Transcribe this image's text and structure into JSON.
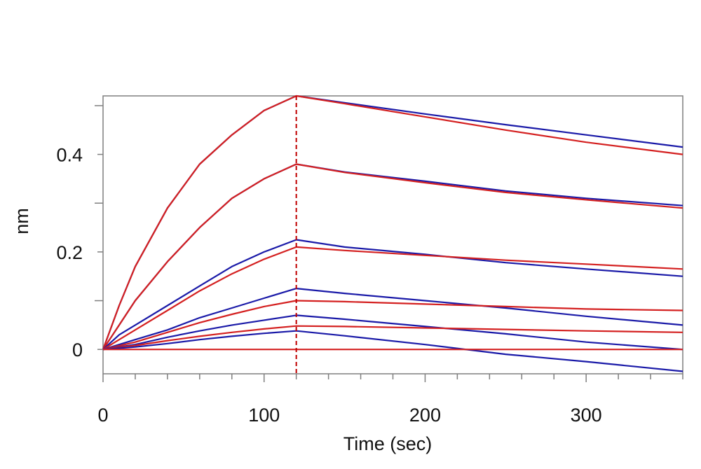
{
  "chart_data": {
    "type": "line",
    "title": "",
    "xlabel": "Time (sec)",
    "ylabel": "nm",
    "xlim": [
      0,
      360
    ],
    "ylim": [
      -0.05,
      0.52
    ],
    "x_major_ticks": [
      0,
      100,
      200,
      300
    ],
    "x_tick_labels": [
      "0",
      "100",
      "200",
      "300"
    ],
    "x_minor_tick_step": 20,
    "y_major_ticks": [
      0,
      0.2,
      0.4
    ],
    "y_tick_labels": [
      "0",
      "0.2",
      "0.4"
    ],
    "y_minor_ticks": [
      0.1,
      0.3,
      0.5
    ],
    "grid": false,
    "legend": "none",
    "marker_line": {
      "x": 120,
      "color": "#c00000",
      "style": "dashed"
    },
    "colors": {
      "data": "#1a1aa8",
      "fit": "#d42020",
      "axis": "#7f7f7f"
    },
    "series": [
      {
        "role": "data",
        "x": [
          0,
          10,
          20,
          40,
          60,
          80,
          100,
          120,
          150,
          200,
          250,
          300,
          360
        ],
        "values": [
          0.0,
          0.09,
          0.17,
          0.29,
          0.38,
          0.44,
          0.49,
          0.52,
          0.506,
          0.483,
          0.461,
          0.44,
          0.415
        ]
      },
      {
        "role": "fit",
        "x": [
          0,
          10,
          20,
          40,
          60,
          80,
          100,
          120,
          150,
          200,
          250,
          300,
          360
        ],
        "values": [
          0.0,
          0.09,
          0.17,
          0.29,
          0.38,
          0.44,
          0.49,
          0.52,
          0.504,
          0.477,
          0.45,
          0.425,
          0.4
        ]
      },
      {
        "role": "data",
        "x": [
          0,
          10,
          20,
          40,
          60,
          80,
          100,
          120,
          150,
          200,
          250,
          300,
          360
        ],
        "values": [
          0.0,
          0.05,
          0.1,
          0.18,
          0.25,
          0.31,
          0.35,
          0.38,
          0.364,
          0.345,
          0.325,
          0.31,
          0.295
        ]
      },
      {
        "role": "fit",
        "x": [
          0,
          10,
          20,
          40,
          60,
          80,
          100,
          120,
          150,
          200,
          250,
          300,
          360
        ],
        "values": [
          0.0,
          0.05,
          0.1,
          0.18,
          0.25,
          0.31,
          0.35,
          0.38,
          0.363,
          0.342,
          0.322,
          0.307,
          0.29
        ]
      },
      {
        "role": "data",
        "x": [
          0,
          10,
          20,
          40,
          60,
          80,
          100,
          120,
          150,
          200,
          250,
          300,
          360
        ],
        "values": [
          0.0,
          0.03,
          0.05,
          0.09,
          0.13,
          0.17,
          0.2,
          0.225,
          0.21,
          0.195,
          0.178,
          0.165,
          0.15
        ]
      },
      {
        "role": "fit",
        "x": [
          0,
          10,
          20,
          40,
          60,
          80,
          100,
          120,
          150,
          200,
          250,
          300,
          360
        ],
        "values": [
          0.0,
          0.02,
          0.04,
          0.08,
          0.12,
          0.155,
          0.185,
          0.21,
          0.203,
          0.193,
          0.183,
          0.175,
          0.165
        ]
      },
      {
        "role": "data",
        "x": [
          0,
          20,
          40,
          60,
          80,
          100,
          120,
          150,
          200,
          250,
          300,
          360
        ],
        "values": [
          0.0,
          0.02,
          0.04,
          0.065,
          0.085,
          0.105,
          0.125,
          0.115,
          0.1,
          0.085,
          0.068,
          0.05
        ]
      },
      {
        "role": "fit",
        "x": [
          0,
          20,
          40,
          60,
          80,
          100,
          120,
          150,
          200,
          250,
          300,
          360
        ],
        "values": [
          0.0,
          0.015,
          0.035,
          0.055,
          0.072,
          0.088,
          0.1,
          0.098,
          0.093,
          0.088,
          0.083,
          0.08
        ]
      },
      {
        "role": "data",
        "x": [
          0,
          20,
          40,
          60,
          80,
          100,
          120,
          150,
          200,
          250,
          300,
          360
        ],
        "values": [
          0.0,
          0.01,
          0.025,
          0.038,
          0.05,
          0.06,
          0.07,
          0.062,
          0.047,
          0.032,
          0.015,
          0.0
        ]
      },
      {
        "role": "fit",
        "x": [
          0,
          20,
          40,
          60,
          80,
          100,
          120,
          150,
          200,
          250,
          300,
          360
        ],
        "values": [
          0.0,
          0.008,
          0.018,
          0.027,
          0.035,
          0.042,
          0.048,
          0.047,
          0.044,
          0.041,
          0.038,
          0.035
        ]
      },
      {
        "role": "data",
        "x": [
          0,
          20,
          40,
          60,
          80,
          100,
          120,
          150,
          200,
          250,
          300,
          360
        ],
        "values": [
          0.0,
          0.005,
          0.012,
          0.02,
          0.027,
          0.033,
          0.038,
          0.028,
          0.01,
          -0.01,
          -0.025,
          -0.045
        ]
      },
      {
        "role": "fit",
        "x": [
          0,
          40,
          120,
          200,
          280,
          360
        ],
        "values": [
          0.0,
          0.0,
          0.0,
          0.0,
          0.0,
          0.0
        ]
      }
    ]
  }
}
